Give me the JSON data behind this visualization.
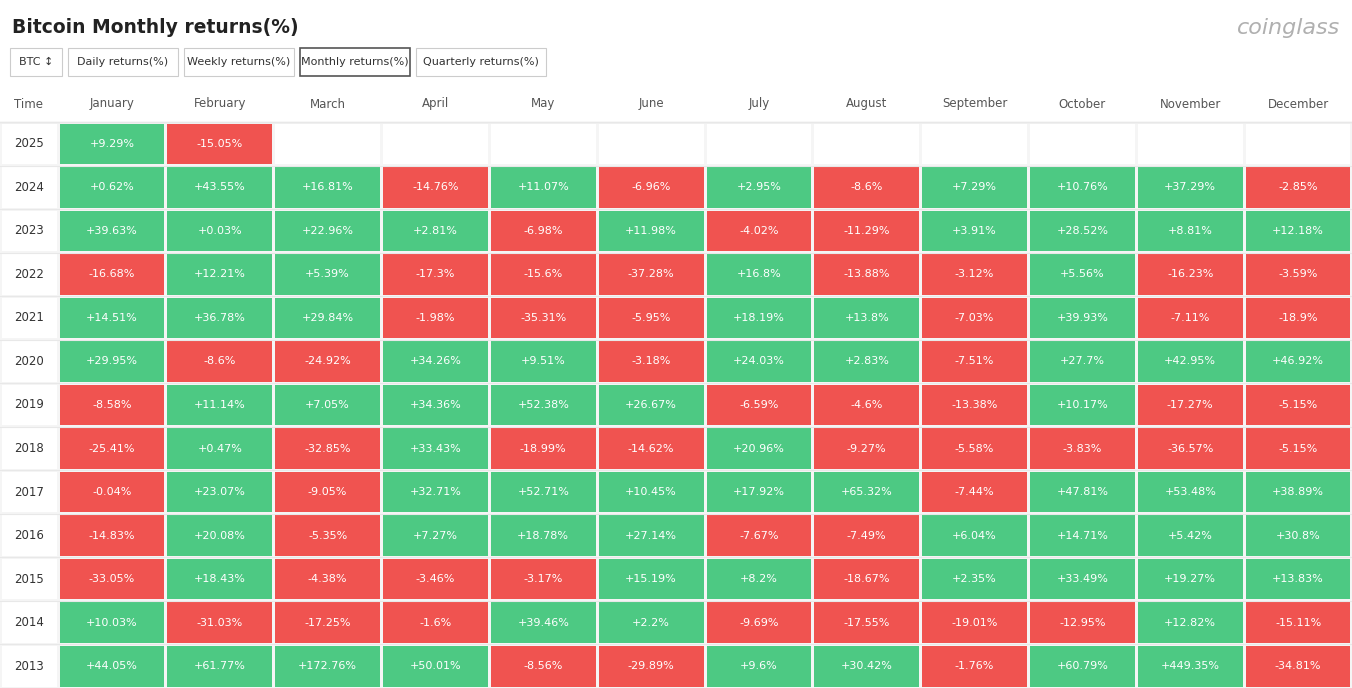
{
  "title": "Bitcoin Monthly returns(%)",
  "source": "coinglass",
  "columns": [
    "January",
    "February",
    "March",
    "April",
    "May",
    "June",
    "July",
    "August",
    "September",
    "October",
    "November",
    "December"
  ],
  "rows": [
    {
      "year": "2025",
      "values": [
        "+9.29%",
        "-15.05%",
        null,
        null,
        null,
        null,
        null,
        null,
        null,
        null,
        null,
        null
      ]
    },
    {
      "year": "2024",
      "values": [
        "+0.62%",
        "+43.55%",
        "+16.81%",
        "-14.76%",
        "+11.07%",
        "-6.96%",
        "+2.95%",
        "-8.6%",
        "+7.29%",
        "+10.76%",
        "+37.29%",
        "-2.85%"
      ]
    },
    {
      "year": "2023",
      "values": [
        "+39.63%",
        "+0.03%",
        "+22.96%",
        "+2.81%",
        "-6.98%",
        "+11.98%",
        "-4.02%",
        "-11.29%",
        "+3.91%",
        "+28.52%",
        "+8.81%",
        "+12.18%"
      ]
    },
    {
      "year": "2022",
      "values": [
        "-16.68%",
        "+12.21%",
        "+5.39%",
        "-17.3%",
        "-15.6%",
        "-37.28%",
        "+16.8%",
        "-13.88%",
        "-3.12%",
        "+5.56%",
        "-16.23%",
        "-3.59%"
      ]
    },
    {
      "year": "2021",
      "values": [
        "+14.51%",
        "+36.78%",
        "+29.84%",
        "-1.98%",
        "-35.31%",
        "-5.95%",
        "+18.19%",
        "+13.8%",
        "-7.03%",
        "+39.93%",
        "-7.11%",
        "-18.9%"
      ]
    },
    {
      "year": "2020",
      "values": [
        "+29.95%",
        "-8.6%",
        "-24.92%",
        "+34.26%",
        "+9.51%",
        "-3.18%",
        "+24.03%",
        "+2.83%",
        "-7.51%",
        "+27.7%",
        "+42.95%",
        "+46.92%"
      ]
    },
    {
      "year": "2019",
      "values": [
        "-8.58%",
        "+11.14%",
        "+7.05%",
        "+34.36%",
        "+52.38%",
        "+26.67%",
        "-6.59%",
        "-4.6%",
        "-13.38%",
        "+10.17%",
        "-17.27%",
        "-5.15%"
      ]
    },
    {
      "year": "2018",
      "values": [
        "-25.41%",
        "+0.47%",
        "-32.85%",
        "+33.43%",
        "-18.99%",
        "-14.62%",
        "+20.96%",
        "-9.27%",
        "-5.58%",
        "-3.83%",
        "-36.57%",
        "-5.15%"
      ]
    },
    {
      "year": "2017",
      "values": [
        "-0.04%",
        "+23.07%",
        "-9.05%",
        "+32.71%",
        "+52.71%",
        "+10.45%",
        "+17.92%",
        "+65.32%",
        "-7.44%",
        "+47.81%",
        "+53.48%",
        "+38.89%"
      ]
    },
    {
      "year": "2016",
      "values": [
        "-14.83%",
        "+20.08%",
        "-5.35%",
        "+7.27%",
        "+18.78%",
        "+27.14%",
        "-7.67%",
        "-7.49%",
        "+6.04%",
        "+14.71%",
        "+5.42%",
        "+30.8%"
      ]
    },
    {
      "year": "2015",
      "values": [
        "-33.05%",
        "+18.43%",
        "-4.38%",
        "-3.46%",
        "-3.17%",
        "+15.19%",
        "+8.2%",
        "-18.67%",
        "+2.35%",
        "+33.49%",
        "+19.27%",
        "+13.83%"
      ]
    },
    {
      "year": "2014",
      "values": [
        "+10.03%",
        "-31.03%",
        "-17.25%",
        "-1.6%",
        "+39.46%",
        "+2.2%",
        "-9.69%",
        "-17.55%",
        "-19.01%",
        "-12.95%",
        "+12.82%",
        "-15.11%"
      ]
    },
    {
      "year": "2013",
      "values": [
        "+44.05%",
        "+61.77%",
        "+172.76%",
        "+50.01%",
        "-8.56%",
        "-29.89%",
        "+9.6%",
        "+30.42%",
        "-1.76%",
        "+60.79%",
        "+449.35%",
        "-34.81%"
      ]
    }
  ],
  "green_color": "#4dc983",
  "red_color": "#f05350",
  "bg_color": "#f5f5f5",
  "header_bg": "#ffffff",
  "text_color_white": "#ffffff",
  "text_color_dark": "#333333",
  "tab_buttons": [
    "BTC ↕",
    "Daily returns(%)",
    "Weekly returns(%)",
    "Monthly returns(%)",
    "Quarterly returns(%)"
  ],
  "active_tab": "Monthly returns(%)"
}
